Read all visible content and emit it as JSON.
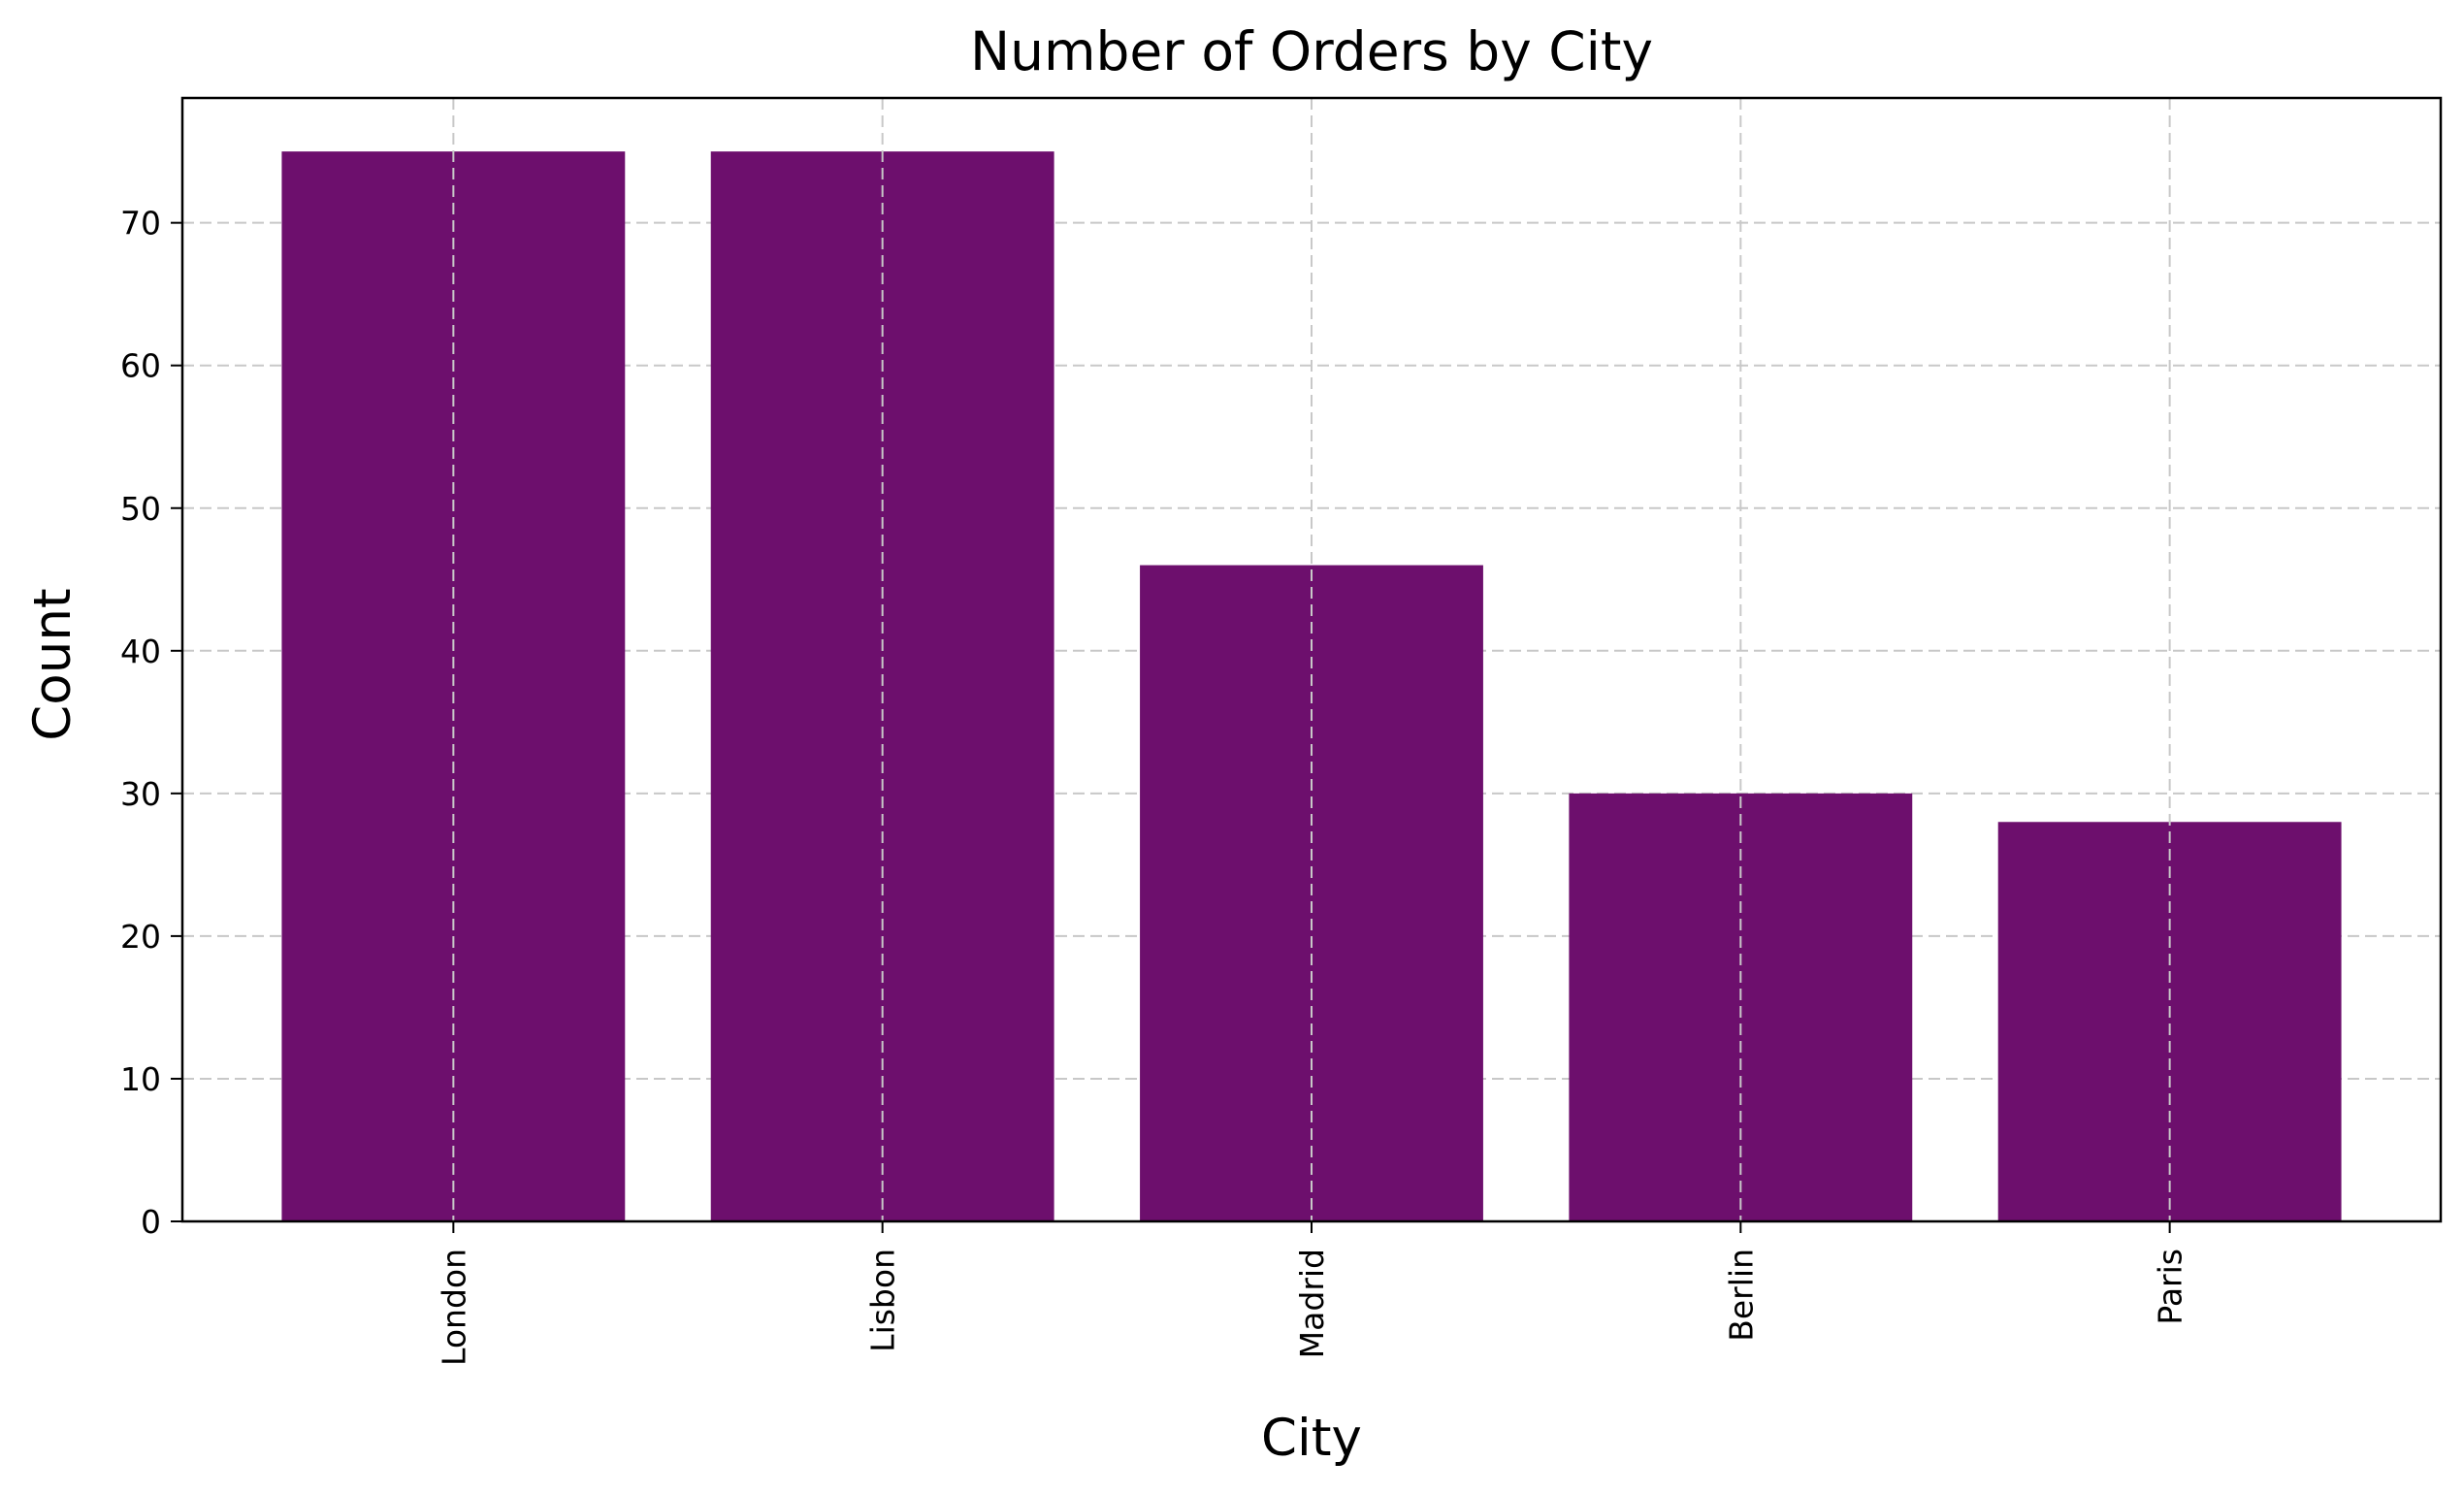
{
  "chart_data": {
    "type": "bar",
    "title": "Number of Orders by City",
    "xlabel": "City",
    "ylabel": "Count",
    "categories": [
      "London",
      "Lisbon",
      "Madrid",
      "Berlin",
      "Paris"
    ],
    "values": [
      75,
      75,
      46,
      30,
      28
    ],
    "ylim": [
      0,
      78.75
    ],
    "yticks": [
      0,
      10,
      20,
      30,
      40,
      50,
      60,
      70
    ],
    "grid": true,
    "bar_color": "#6d0f6d",
    "grid_color": "#c8c8c8"
  }
}
